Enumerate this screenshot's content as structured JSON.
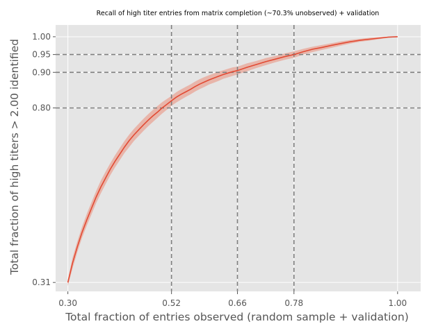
{
  "chart_data": {
    "type": "line",
    "title": "Recall of high titer entries from matrix completion (~70.3% unobserved) + validation",
    "xlabel": "Total fraction of entries observed (random sample + validation)",
    "ylabel": "Total fraction of high titers > 2.00 identified",
    "xlim": [
      0.274,
      1.049
    ],
    "ylim": [
      0.285,
      1.033
    ],
    "xticks": [
      0.3,
      0.52,
      0.66,
      0.78,
      1.0
    ],
    "xtick_labels": [
      "0.30",
      "0.52",
      "0.66",
      "0.78",
      "1.00"
    ],
    "yticks": [
      0.31,
      0.8,
      0.9,
      0.95,
      1.0
    ],
    "ytick_labels": [
      "0.31",
      "0.80",
      "0.90",
      "0.95",
      "1.00"
    ],
    "vlines": [
      0.52,
      0.66,
      0.78
    ],
    "hlines": [
      0.8,
      0.9,
      0.95
    ],
    "grid": true,
    "series": [
      {
        "x": [
          0.3,
          0.31,
          0.32,
          0.33,
          0.34,
          0.35,
          0.36,
          0.37,
          0.38,
          0.39,
          0.4,
          0.41,
          0.42,
          0.43,
          0.44,
          0.45,
          0.46,
          0.47,
          0.48,
          0.49,
          0.5,
          0.51,
          0.52,
          0.53,
          0.54,
          0.55,
          0.56,
          0.57,
          0.58,
          0.59,
          0.6,
          0.61,
          0.62,
          0.63,
          0.64,
          0.65,
          0.66,
          0.68,
          0.7,
          0.72,
          0.74,
          0.76,
          0.78,
          0.8,
          0.82,
          0.84,
          0.86,
          0.88,
          0.9,
          0.92,
          0.94,
          0.96,
          0.98,
          1.0
        ],
        "y": [
          0.31,
          0.365,
          0.41,
          0.45,
          0.485,
          0.518,
          0.55,
          0.578,
          0.603,
          0.628,
          0.65,
          0.67,
          0.69,
          0.708,
          0.724,
          0.738,
          0.752,
          0.765,
          0.777,
          0.788,
          0.8,
          0.81,
          0.82,
          0.83,
          0.838,
          0.845,
          0.852,
          0.86,
          0.867,
          0.873,
          0.879,
          0.884,
          0.889,
          0.894,
          0.898,
          0.902,
          0.905,
          0.914,
          0.922,
          0.93,
          0.937,
          0.944,
          0.95,
          0.958,
          0.965,
          0.97,
          0.976,
          0.981,
          0.986,
          0.99,
          0.993,
          0.996,
          0.999,
          1.0
        ],
        "lower": [
          0.3,
          0.35,
          0.395,
          0.435,
          0.469,
          0.501,
          0.533,
          0.56,
          0.586,
          0.611,
          0.633,
          0.653,
          0.673,
          0.69,
          0.707,
          0.721,
          0.735,
          0.748,
          0.76,
          0.772,
          0.784,
          0.795,
          0.806,
          0.815,
          0.823,
          0.831,
          0.838,
          0.846,
          0.853,
          0.859,
          0.866,
          0.871,
          0.876,
          0.882,
          0.886,
          0.89,
          0.894,
          0.903,
          0.912,
          0.92,
          0.928,
          0.935,
          0.941,
          0.95,
          0.957,
          0.963,
          0.969,
          0.975,
          0.981,
          0.986,
          0.989,
          0.993,
          0.997,
          0.999
        ],
        "upper": [
          0.318,
          0.38,
          0.425,
          0.466,
          0.502,
          0.535,
          0.567,
          0.596,
          0.621,
          0.645,
          0.667,
          0.687,
          0.707,
          0.725,
          0.741,
          0.755,
          0.769,
          0.782,
          0.794,
          0.805,
          0.816,
          0.825,
          0.834,
          0.844,
          0.852,
          0.859,
          0.866,
          0.874,
          0.881,
          0.887,
          0.892,
          0.897,
          0.902,
          0.906,
          0.91,
          0.914,
          0.916,
          0.925,
          0.932,
          0.94,
          0.946,
          0.953,
          0.959,
          0.966,
          0.972,
          0.977,
          0.982,
          0.987,
          0.991,
          0.994,
          0.997,
          0.999,
          1.0,
          1.001
        ]
      }
    ]
  },
  "colors": {
    "line": "#E24A33",
    "band": "#E8B5AA",
    "panel": "#E5E5E5",
    "grid": "#FFFFFF",
    "refline": "#808080"
  }
}
